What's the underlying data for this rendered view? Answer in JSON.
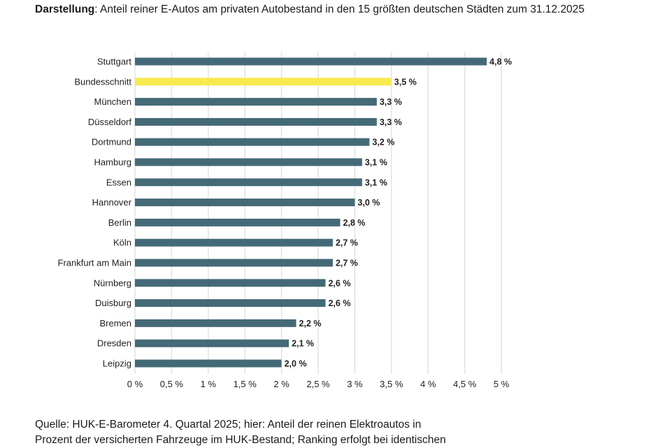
{
  "title": {
    "label": "Darstellung",
    "text": ": Anteil reiner E-Autos am privaten Autobestand in den 15 größten deutschen Städten zum 31.12.2025"
  },
  "source": {
    "line1": "Quelle: HUK-E-Barometer 4. Quartal 2025; hier: Anteil der reinen Elektroautos in",
    "line2": "Prozent der versicherten Fahrzeuge im HUK-Bestand; Ranking erfolgt bei identischen"
  },
  "chart_data": {
    "type": "bar",
    "orientation": "horizontal",
    "categories": [
      "Stuttgart",
      "Bundesschnitt",
      "München",
      "Düsseldorf",
      "Dortmund",
      "Hamburg",
      "Essen",
      "Hannover",
      "Berlin",
      "Köln",
      "Frankfurt am Main",
      "Nürnberg",
      "Duisburg",
      "Bremen",
      "Dresden",
      "Leipzig"
    ],
    "values": [
      4.8,
      3.5,
      3.3,
      3.3,
      3.2,
      3.1,
      3.1,
      3.0,
      2.8,
      2.7,
      2.7,
      2.6,
      2.6,
      2.2,
      2.1,
      2.0
    ],
    "data_labels": [
      "4,8 %",
      "3,5 %",
      "3,3 %",
      "3,3 %",
      "3,2 %",
      "3,1 %",
      "3,1 %",
      "3,0 %",
      "2,8 %",
      "2,7 %",
      "2,7 %",
      "2,6 %",
      "2,6 %",
      "2,2 %",
      "2,1 %",
      "2,0 %"
    ],
    "highlight_category": "Bundesschnitt",
    "xlim": [
      0,
      5
    ],
    "xticks": [
      0,
      0.5,
      1,
      1.5,
      2,
      2.5,
      3,
      3.5,
      4,
      4.5,
      5
    ],
    "xtick_labels": [
      "0 %",
      "0,5 %",
      "1 %",
      "1,5 %",
      "2 %",
      "2,5 %",
      "3 %",
      "3,5 %",
      "4 %",
      "4,5 %",
      "5 %"
    ],
    "grid": "vertical",
    "colors": {
      "bar": "#456a77",
      "highlight": "#f7ea4f",
      "grid": "#e3e3e3"
    }
  }
}
